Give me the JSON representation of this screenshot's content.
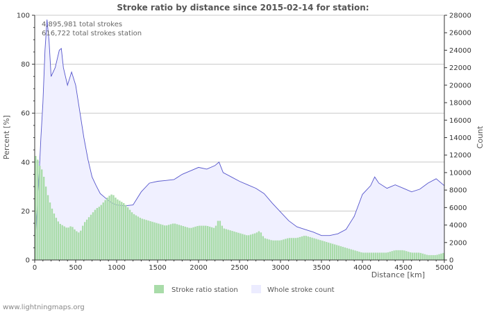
{
  "chart_data": {
    "type": "area",
    "title": "Stroke ratio by distance since 2015-02-14 for station:",
    "xlabel": "Distance   [km]",
    "ylabel_left": "Percent   [%]",
    "ylabel_right": "Count",
    "xlim": [
      0,
      5000
    ],
    "ylim_left": [
      0,
      100
    ],
    "ylim_right": [
      0,
      28000
    ],
    "xticks": [
      0,
      500,
      1000,
      1500,
      2000,
      2500,
      3000,
      3500,
      4000,
      4500,
      5000
    ],
    "yticks_left": [
      0,
      20,
      40,
      60,
      80,
      100
    ],
    "yticks_right": [
      0,
      2000,
      4000,
      6000,
      8000,
      10000,
      12000,
      14000,
      16000,
      18000,
      20000,
      22000,
      24000,
      26000,
      28000
    ],
    "grid": true,
    "annotations": [
      "4,895,981 total strokes",
      "616,722 total strokes station"
    ],
    "series": [
      {
        "name": "Stroke ratio station",
        "axis": "left",
        "color": "#a9dca9",
        "x": [
          0,
          25,
          50,
          75,
          100,
          125,
          150,
          175,
          200,
          250,
          300,
          350,
          400,
          450,
          500,
          550,
          600,
          650,
          700,
          750,
          800,
          850,
          900,
          950,
          1000,
          1050,
          1100,
          1150,
          1200,
          1300,
          1400,
          1500,
          1600,
          1700,
          1800,
          1900,
          2000,
          2100,
          2200,
          2250,
          2300,
          2400,
          2500,
          2600,
          2700,
          2750,
          2800,
          2900,
          3000,
          3100,
          3200,
          3300,
          3400,
          3500,
          3600,
          3700,
          3800,
          3900,
          4000,
          4100,
          4200,
          4300,
          4400,
          4500,
          4600,
          4700,
          4800,
          4900,
          5000
        ],
        "values": [
          42,
          43,
          39,
          38,
          36,
          32,
          28,
          25,
          22,
          18,
          15,
          14,
          13,
          14,
          12,
          11,
          15,
          17,
          19,
          21,
          22,
          24,
          26,
          27,
          25,
          24,
          23,
          21,
          19,
          17,
          16,
          15,
          14,
          15,
          14,
          13,
          14,
          14,
          13,
          17,
          13,
          12,
          11,
          10,
          11,
          12,
          9,
          8,
          8,
          9,
          9,
          10,
          9,
          8,
          7,
          6,
          5,
          4,
          3,
          3,
          3,
          3,
          4,
          4,
          3,
          3,
          2,
          2,
          3
        ]
      },
      {
        "name": "Whole stroke count",
        "axis": "right",
        "color": "#f0f0ff",
        "line_color": "#5555cc",
        "x": [
          0,
          25,
          50,
          75,
          100,
          125,
          150,
          175,
          200,
          250,
          300,
          325,
          350,
          400,
          450,
          500,
          550,
          600,
          650,
          700,
          750,
          800,
          850,
          900,
          950,
          1000,
          1100,
          1200,
          1300,
          1400,
          1500,
          1600,
          1700,
          1800,
          1900,
          2000,
          2100,
          2200,
          2250,
          2300,
          2400,
          2500,
          2600,
          2700,
          2800,
          2900,
          3000,
          3100,
          3200,
          3300,
          3400,
          3500,
          3600,
          3700,
          3800,
          3900,
          4000,
          4100,
          4150,
          4200,
          4300,
          4400,
          4500,
          4600,
          4700,
          4800,
          4900,
          5000
        ],
        "values": [
          0,
          5000,
          9000,
          14000,
          18000,
          24000,
          27500,
          25000,
          21000,
          22000,
          24000,
          24200,
          22000,
          20000,
          21500,
          20000,
          17000,
          14000,
          11500,
          9500,
          8500,
          7600,
          7200,
          6800,
          6500,
          6300,
          6200,
          6300,
          7800,
          8800,
          9000,
          9100,
          9200,
          9800,
          10200,
          10600,
          10400,
          10800,
          11200,
          10000,
          9500,
          9000,
          8600,
          8200,
          7600,
          6500,
          5500,
          4500,
          3800,
          3500,
          3200,
          2800,
          2800,
          3000,
          3500,
          5000,
          7500,
          8500,
          9500,
          8800,
          8200,
          8600,
          8200,
          7800,
          8100,
          8800,
          9300,
          8500
        ]
      }
    ]
  },
  "legend": {
    "items": [
      {
        "label": "Stroke ratio station",
        "color": "#a9dca9"
      },
      {
        "label": "Whole stroke count",
        "color": "#ececff"
      }
    ]
  },
  "footer": {
    "watermark": "www.lightningmaps.org"
  }
}
